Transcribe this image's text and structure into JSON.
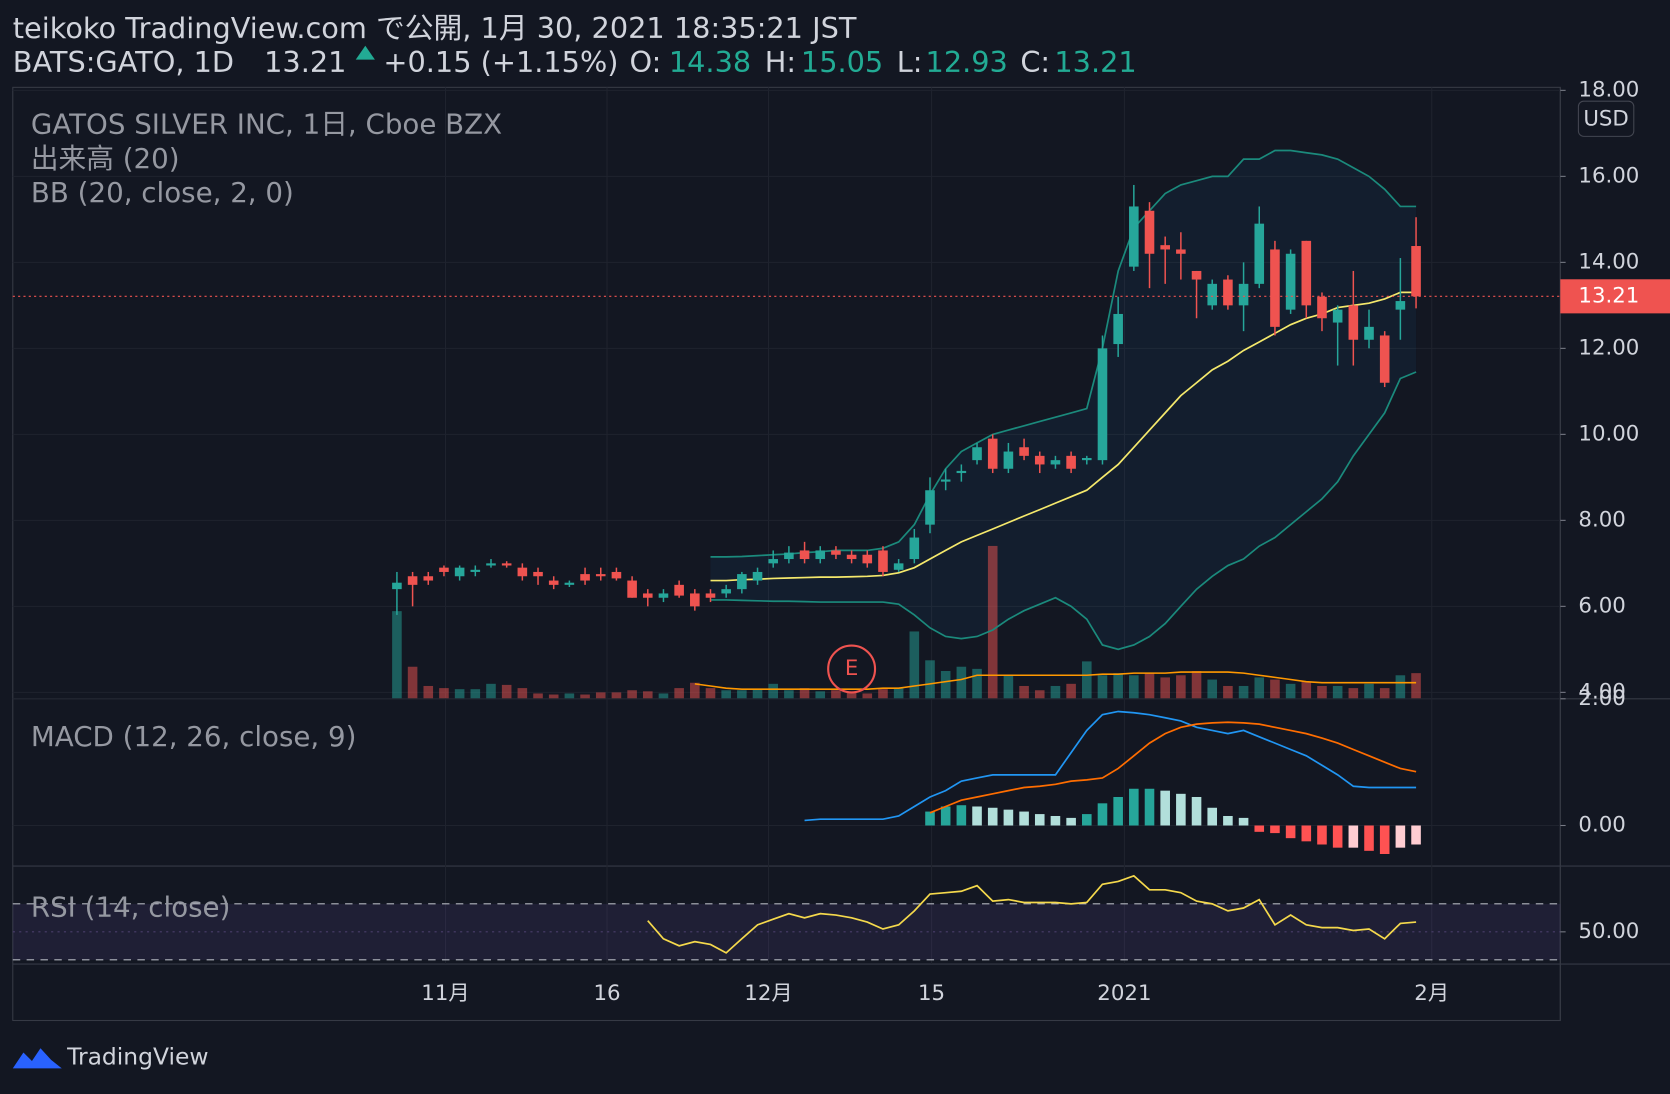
{
  "header": {
    "published": "teikoko TradingView.com で公開, 1月 30, 2021 18:35:21 JST",
    "symbol": "BATS:GATO, 1D",
    "change": "+0.15 (+1.15%)",
    "ohlc_labels": [
      "O:",
      "H:",
      "L:",
      "C:"
    ],
    "brand": "TradingView"
  },
  "x_axis": {
    "xlim": [
      -24.5,
      74.2
    ],
    "xticks": [
      {
        "value": 3.1,
        "label": "11月"
      },
      {
        "value": 13.4,
        "label": "16"
      },
      {
        "value": 23.7,
        "label": "12月"
      },
      {
        "value": 34.1,
        "label": "15"
      },
      {
        "value": 46.4,
        "label": "2021"
      },
      {
        "value": 66,
        "label": "2月"
      }
    ]
  },
  "chart_data": [
    {
      "type": "candlestick",
      "legend": [
        "GATOS SILVER INC, 1日, Cboe BZX",
        "出来高 (20)",
        "BB (20, close, 2, 0)"
      ],
      "currency": "USD",
      "ylim": [
        3.85,
        18.07
      ],
      "yticks": [
        {
          "value": 4,
          "label": "4.00"
        },
        {
          "value": 6,
          "label": "6.00"
        },
        {
          "value": 8,
          "label": "8.00"
        },
        {
          "value": 10,
          "label": "10.00"
        },
        {
          "value": 12,
          "label": "12.00"
        },
        {
          "value": 14,
          "label": "14.00"
        },
        {
          "value": 16,
          "label": "16.00"
        },
        {
          "value": 18,
          "label": "18.00"
        }
      ],
      "grid": true,
      "up_color": "#26a69a",
      "down_color": "#ef5350",
      "open": [
        6.4,
        6.7,
        6.7,
        6.9,
        6.7,
        6.8,
        6.95,
        7.0,
        6.9,
        6.8,
        6.6,
        6.5,
        6.75,
        6.75,
        6.8,
        6.6,
        6.3,
        6.2,
        6.5,
        6.3,
        6.3,
        6.3,
        6.4,
        6.6,
        7.0,
        7.1,
        7.3,
        7.1,
        7.3,
        7.2,
        7.2,
        7.3,
        6.85,
        7.1,
        7.9,
        8.9,
        9.1,
        9.4,
        9.9,
        9.2,
        9.7,
        9.5,
        9.3,
        9.5,
        9.4,
        9.4,
        12.1,
        13.9,
        15.2,
        14.4,
        14.3,
        13.8,
        13.0,
        13.6,
        13.0,
        13.5,
        14.3,
        12.9,
        14.5,
        13.2,
        12.6,
        13.0,
        12.2,
        12.3,
        12.9,
        14.38
      ],
      "high": [
        6.8,
        6.8,
        6.8,
        6.95,
        6.95,
        6.95,
        7.1,
        7.05,
        7.0,
        6.9,
        6.7,
        6.6,
        6.9,
        6.9,
        6.9,
        6.7,
        6.4,
        6.4,
        6.6,
        6.4,
        6.4,
        6.5,
        6.8,
        6.9,
        7.3,
        7.4,
        7.5,
        7.4,
        7.4,
        7.3,
        7.3,
        7.4,
        7.1,
        7.8,
        9.0,
        9.2,
        9.3,
        9.8,
        10.0,
        9.8,
        9.9,
        9.6,
        9.5,
        9.6,
        9.5,
        12.3,
        13.2,
        15.8,
        15.4,
        14.6,
        14.7,
        13.8,
        13.6,
        13.7,
        14.0,
        15.3,
        14.5,
        14.3,
        14.5,
        13.3,
        13.0,
        13.8,
        12.9,
        12.4,
        14.1,
        15.05
      ],
      "low": [
        5.8,
        6.0,
        6.5,
        6.7,
        6.6,
        6.7,
        6.9,
        6.9,
        6.6,
        6.5,
        6.4,
        6.45,
        6.5,
        6.6,
        6.6,
        6.2,
        6.0,
        6.1,
        6.2,
        5.9,
        6.1,
        6.2,
        6.3,
        6.5,
        6.9,
        7.0,
        7.0,
        7.0,
        7.1,
        7.0,
        6.9,
        6.7,
        6.8,
        7.0,
        7.7,
        8.7,
        8.9,
        9.3,
        9.1,
        9.1,
        9.4,
        9.1,
        9.2,
        9.1,
        9.3,
        9.3,
        11.8,
        13.8,
        13.4,
        13.5,
        13.6,
        12.7,
        12.9,
        12.9,
        12.4,
        13.4,
        12.3,
        12.8,
        12.7,
        12.4,
        11.6,
        11.6,
        12.0,
        11.1,
        12.2,
        12.93
      ],
      "close": [
        6.55,
        6.5,
        6.6,
        6.8,
        6.9,
        6.85,
        7.0,
        6.95,
        6.7,
        6.7,
        6.5,
        6.55,
        6.6,
        6.7,
        6.65,
        6.2,
        6.2,
        6.3,
        6.25,
        6.0,
        6.2,
        6.4,
        6.75,
        6.8,
        7.1,
        7.25,
        7.1,
        7.3,
        7.2,
        7.1,
        7.0,
        6.8,
        7.0,
        7.6,
        8.7,
        8.95,
        9.15,
        9.7,
        9.2,
        9.6,
        9.5,
        9.3,
        9.4,
        9.2,
        9.45,
        12.0,
        12.8,
        15.3,
        14.2,
        14.3,
        14.2,
        13.6,
        13.5,
        13.0,
        13.5,
        14.9,
        12.5,
        14.2,
        13.0,
        12.7,
        12.9,
        12.2,
        12.5,
        11.2,
        13.1,
        13.21
      ],
      "volume": {
        "up_color": "rgba(38,166,154,0.5)",
        "down_color": "rgba(239,83,80,0.5)",
        "values": [
          82,
          30,
          12,
          10,
          9,
          9,
          14,
          13,
          10,
          5,
          4,
          5,
          4,
          6,
          6,
          8,
          7,
          5,
          10,
          15,
          10,
          8,
          8,
          9,
          14,
          8,
          10,
          7,
          8,
          6,
          5,
          9,
          10,
          63,
          36,
          26,
          30,
          28,
          143,
          22,
          12,
          8,
          12,
          14,
          35,
          22,
          24,
          22,
          24,
          20,
          22,
          26,
          18,
          12,
          12,
          20,
          18,
          14,
          16,
          12,
          12,
          10,
          14,
          10,
          22,
          24
        ]
      },
      "volume_ma": {
        "color": "#ff9800",
        "values": [
          null,
          null,
          null,
          null,
          null,
          null,
          null,
          null,
          null,
          null,
          null,
          null,
          null,
          null,
          null,
          null,
          null,
          null,
          null,
          14,
          12,
          10,
          9,
          9,
          9,
          9,
          9,
          9,
          9,
          9,
          9,
          10,
          10,
          12,
          14,
          16,
          18,
          22,
          22,
          22,
          22,
          22,
          22,
          22,
          22,
          23,
          23,
          24,
          24,
          24,
          25,
          25,
          25,
          25,
          24,
          22,
          20,
          18,
          16,
          15,
          15,
          15,
          15,
          15,
          15,
          15
        ]
      },
      "bollinger": {
        "fill": "rgba(33,150,243,0.06)",
        "upper": {
          "color": "#1b8a7c",
          "values": [
            null,
            null,
            null,
            null,
            null,
            null,
            null,
            null,
            null,
            null,
            null,
            null,
            null,
            null,
            null,
            null,
            null,
            null,
            null,
            null,
            7.15,
            7.15,
            7.16,
            7.18,
            7.2,
            7.22,
            7.25,
            7.27,
            7.3,
            7.3,
            7.3,
            7.35,
            7.5,
            7.9,
            8.6,
            9.2,
            9.6,
            9.8,
            10.0,
            10.1,
            10.2,
            10.3,
            10.4,
            10.5,
            10.6,
            12.0,
            13.8,
            14.8,
            15.2,
            15.6,
            15.8,
            15.9,
            16.0,
            16.0,
            16.4,
            16.4,
            16.6,
            16.6,
            16.55,
            16.5,
            16.4,
            16.2,
            16.0,
            15.7,
            15.3,
            15.3
          ]
        },
        "basis": {
          "color": "#f5e96c",
          "values": [
            null,
            null,
            null,
            null,
            null,
            null,
            null,
            null,
            null,
            null,
            null,
            null,
            null,
            null,
            null,
            null,
            null,
            null,
            null,
            null,
            6.6,
            6.6,
            6.62,
            6.63,
            6.65,
            6.66,
            6.67,
            6.68,
            6.68,
            6.69,
            6.7,
            6.72,
            6.78,
            6.9,
            7.1,
            7.3,
            7.5,
            7.65,
            7.8,
            7.95,
            8.1,
            8.25,
            8.4,
            8.55,
            8.7,
            9.0,
            9.3,
            9.7,
            10.1,
            10.5,
            10.9,
            11.2,
            11.5,
            11.7,
            11.95,
            12.15,
            12.35,
            12.55,
            12.7,
            12.8,
            12.95,
            13.0,
            13.05,
            13.15,
            13.3,
            13.3
          ]
        },
        "lower": {
          "color": "#1b8a7c",
          "values": [
            null,
            null,
            null,
            null,
            null,
            null,
            null,
            null,
            null,
            null,
            null,
            null,
            null,
            null,
            null,
            null,
            null,
            null,
            null,
            null,
            6.15,
            6.15,
            6.14,
            6.13,
            6.12,
            6.12,
            6.11,
            6.1,
            6.1,
            6.1,
            6.1,
            6.1,
            6.05,
            5.8,
            5.5,
            5.3,
            5.25,
            5.3,
            5.45,
            5.7,
            5.9,
            6.05,
            6.2,
            6.0,
            5.7,
            5.1,
            5.0,
            5.1,
            5.3,
            5.6,
            6.0,
            6.4,
            6.7,
            6.95,
            7.1,
            7.4,
            7.6,
            7.9,
            8.2,
            8.5,
            8.9,
            9.5,
            10.0,
            10.5,
            11.3,
            11.45
          ]
        }
      },
      "events": [
        {
          "label": "E",
          "x": 29,
          "color": "#ef5350"
        }
      ]
    },
    {
      "type": "macd",
      "legend": [
        "MACD (12, 26, close, 9)"
      ],
      "ylim": [
        -0.64,
        2.0
      ],
      "yticks": [
        {
          "value": 0,
          "label": "0.00"
        },
        {
          "value": 2,
          "label": "2.00"
        }
      ],
      "series": [
        {
          "color": "#2196f3",
          "values": [
            null,
            null,
            null,
            null,
            null,
            null,
            null,
            null,
            null,
            null,
            null,
            null,
            null,
            null,
            null,
            null,
            null,
            null,
            null,
            null,
            null,
            null,
            null,
            null,
            null,
            null,
            0.08,
            0.1,
            0.1,
            0.1,
            0.1,
            0.1,
            0.15,
            0.3,
            0.45,
            0.55,
            0.7,
            0.75,
            0.8,
            0.8,
            0.8,
            0.8,
            0.8,
            1.15,
            1.5,
            1.75,
            1.8,
            1.78,
            1.75,
            1.7,
            1.65,
            1.55,
            1.5,
            1.45,
            1.5,
            1.4,
            1.3,
            1.2,
            1.1,
            0.95,
            0.8,
            0.62,
            0.6,
            0.6,
            0.6,
            0.6
          ]
        },
        {
          "color": "#ff6d00",
          "values": [
            null,
            null,
            null,
            null,
            null,
            null,
            null,
            null,
            null,
            null,
            null,
            null,
            null,
            null,
            null,
            null,
            null,
            null,
            null,
            null,
            null,
            null,
            null,
            null,
            null,
            null,
            null,
            null,
            null,
            null,
            null,
            null,
            null,
            null,
            0.2,
            0.3,
            0.4,
            0.45,
            0.5,
            0.55,
            0.6,
            0.62,
            0.65,
            0.7,
            0.72,
            0.75,
            0.9,
            1.1,
            1.3,
            1.45,
            1.55,
            1.6,
            1.62,
            1.63,
            1.62,
            1.6,
            1.55,
            1.5,
            1.45,
            1.38,
            1.3,
            1.2,
            1.1,
            1.0,
            0.9,
            0.85
          ]
        }
      ],
      "histogram": {
        "colors": [
          "#26a69a",
          "#b2dfdb",
          "#ffcdd2",
          "#ff5252"
        ],
        "values": [
          null,
          null,
          null,
          null,
          null,
          null,
          null,
          null,
          null,
          null,
          null,
          null,
          null,
          null,
          null,
          null,
          null,
          null,
          null,
          null,
          null,
          null,
          null,
          null,
          null,
          null,
          null,
          null,
          null,
          null,
          null,
          null,
          null,
          null,
          0.22,
          0.3,
          0.32,
          0.3,
          0.28,
          0.25,
          0.22,
          0.18,
          0.15,
          0.12,
          0.18,
          0.35,
          0.45,
          0.58,
          0.58,
          0.55,
          0.5,
          0.45,
          0.28,
          0.15,
          0.12,
          -0.1,
          -0.12,
          -0.2,
          -0.25,
          -0.3,
          -0.35,
          -0.35,
          -0.4,
          -0.45,
          -0.35,
          -0.3
        ]
      }
    },
    {
      "type": "rsi",
      "legend": [
        "RSI (14, close)"
      ],
      "ylim": [
        27,
        97
      ],
      "yticks": [
        {
          "value": 50,
          "label": "50.00"
        }
      ],
      "bands": [
        30,
        70
      ],
      "band_fill": "rgba(126,87,194,0.12)",
      "series": [
        {
          "color": "#f5d94c",
          "values": [
            null,
            null,
            null,
            null,
            null,
            null,
            null,
            null,
            null,
            null,
            null,
            null,
            null,
            null,
            null,
            null,
            58,
            45,
            40,
            43,
            41,
            35,
            45,
            55,
            59,
            63,
            60,
            63,
            62,
            60,
            57,
            52,
            55,
            65,
            77,
            78,
            79,
            83,
            72,
            73,
            71,
            71,
            71,
            70,
            71,
            84,
            86,
            90,
            80,
            80,
            78,
            72,
            70,
            65,
            67,
            73,
            55,
            62,
            55,
            53,
            53,
            51,
            52,
            45,
            56,
            57
          ]
        }
      ]
    }
  ]
}
